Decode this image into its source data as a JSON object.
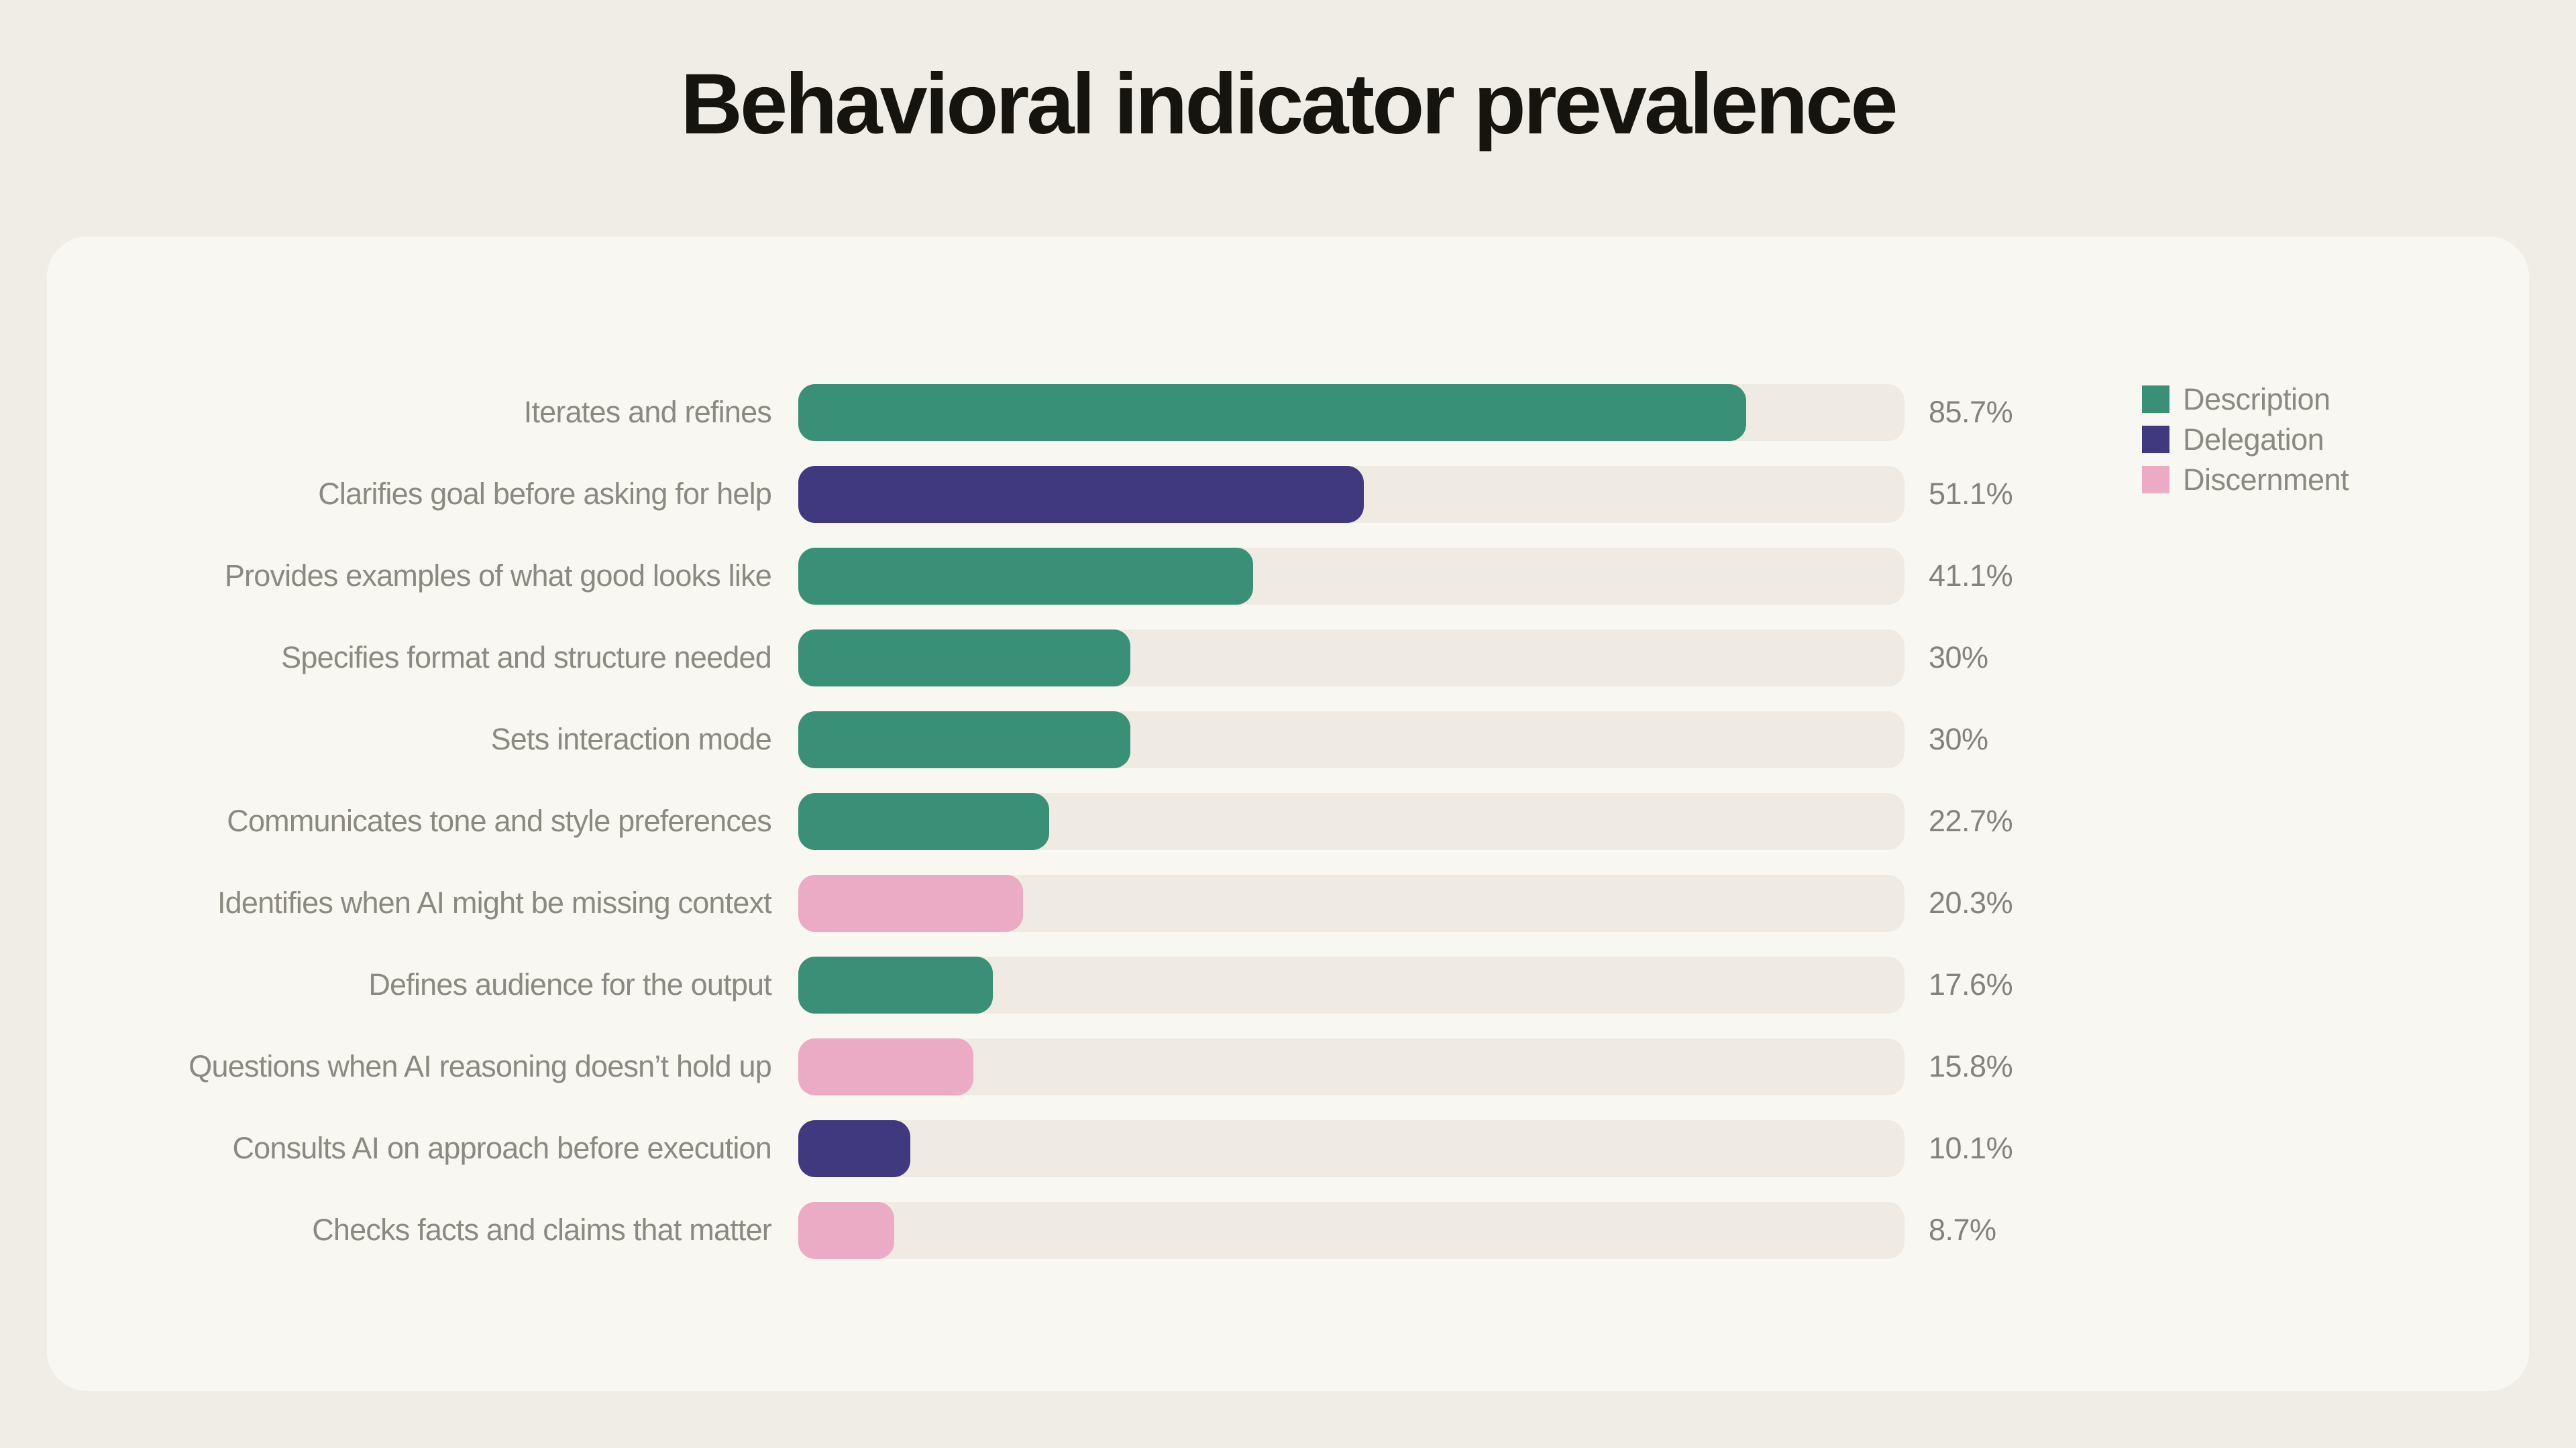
{
  "title": "Behavioral indicator prevalence",
  "colors": {
    "page_bg": "#F0EDE6",
    "card_bg": "#F8F7F1",
    "track": "#EFEBE3",
    "title_text": "#16140F",
    "label_text": "#8B8980",
    "value_text": "#84827A",
    "Description": "#3A9077",
    "Delegation": "#413980",
    "Discernment": "#ECABC5"
  },
  "legend": {
    "items": [
      {
        "label": "Description",
        "group": "Description"
      },
      {
        "label": "Delegation",
        "group": "Delegation"
      },
      {
        "label": "Discernment",
        "group": "Discernment"
      }
    ]
  },
  "chart_data": {
    "type": "bar",
    "orientation": "horizontal",
    "title": "Behavioral indicator prevalence",
    "xlabel": "",
    "ylabel": "",
    "unit": "%",
    "xlim": [
      0,
      100
    ],
    "grid": false,
    "legend_position": "top-right",
    "series_field": "group",
    "rows": [
      {
        "label": "Iterates and refines",
        "value": 85.7,
        "display": "85.7%",
        "group": "Description"
      },
      {
        "label": "Clarifies goal before asking for help",
        "value": 51.1,
        "display": "51.1%",
        "group": "Delegation"
      },
      {
        "label": "Provides examples of what good looks like",
        "value": 41.1,
        "display": "41.1%",
        "group": "Description"
      },
      {
        "label": "Specifies format and structure needed",
        "value": 30,
        "display": "30%",
        "group": "Description"
      },
      {
        "label": "Sets interaction mode",
        "value": 30,
        "display": "30%",
        "group": "Description"
      },
      {
        "label": "Communicates tone and style preferences",
        "value": 22.7,
        "display": "22.7%",
        "group": "Description"
      },
      {
        "label": "Identifies when AI might be missing context",
        "value": 20.3,
        "display": "20.3%",
        "group": "Discernment"
      },
      {
        "label": "Defines audience for the output",
        "value": 17.6,
        "display": "17.6%",
        "group": "Description"
      },
      {
        "label": "Questions when AI reasoning doesn’t hold up",
        "value": 15.8,
        "display": "15.8%",
        "group": "Discernment"
      },
      {
        "label": "Consults AI on approach before execution",
        "value": 10.1,
        "display": "10.1%",
        "group": "Delegation"
      },
      {
        "label": "Checks facts and claims that matter",
        "value": 8.7,
        "display": "8.7%",
        "group": "Discernment"
      }
    ]
  }
}
